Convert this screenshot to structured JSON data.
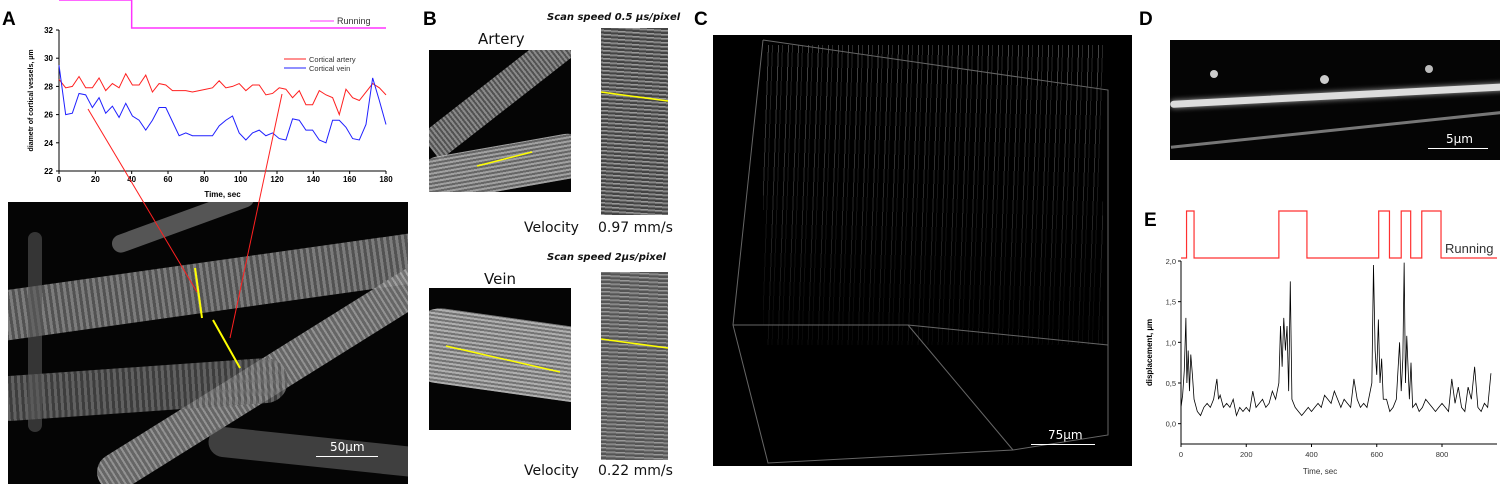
{
  "panels": {
    "A": {
      "label": "A",
      "scale_bar": "50µm"
    },
    "B": {
      "label": "B",
      "artery": {
        "title": "Artery",
        "scan_speed": "Scan speed 0.5 µs/pixel",
        "velocity_label": "Velocity",
        "velocity_value": "0.97 mm/s"
      },
      "vein": {
        "title": "Vein",
        "scan_speed": "Scan speed 2µs/pixel",
        "velocity_label": "Velocity",
        "velocity_value": "0.22 mm/s"
      }
    },
    "C": {
      "label": "C",
      "scale_bar": "75µm"
    },
    "D": {
      "label": "D",
      "scale_bar": "5µm"
    },
    "E": {
      "label": "E"
    }
  },
  "colors": {
    "artery": "#ff2020",
    "vein": "#2020ff",
    "running_A": "#ff33ff",
    "running_E": "#ff3030",
    "scan_line": "#ffff00"
  },
  "chart_data": [
    {
      "type": "line",
      "panel": "A",
      "xlabel": "Time, sec",
      "ylabel": "diametr of cortical vessels, µm",
      "xlim": [
        0,
        180
      ],
      "ylim": [
        22,
        32
      ],
      "xticks": [
        0,
        20,
        40,
        60,
        80,
        100,
        120,
        140,
        160,
        180
      ],
      "yticks": [
        22,
        24,
        26,
        28,
        30,
        32
      ],
      "legend": "top-right",
      "running": {
        "label": "Running",
        "high_interval": [
          0,
          40
        ]
      },
      "series": [
        {
          "name": "Cortical artery",
          "color": "#ff2020",
          "values": [
            28.5,
            27.9,
            28.0,
            28.7,
            27.9,
            27.9,
            28.6,
            27.7,
            28.2,
            27.9,
            28.9,
            28.1,
            28.1,
            28.8,
            27.6,
            28.2,
            28.1,
            27.7,
            27.7,
            27.7,
            27.6,
            27.7,
            27.8,
            27.9,
            28.4,
            27.9,
            28.0,
            28.2,
            27.7,
            28.1,
            28.1,
            27.4,
            27.5,
            27.9,
            27.8,
            27.2,
            27.7,
            26.7,
            26.7,
            27.7,
            27.4,
            27.2,
            26.0,
            27.8,
            27.2,
            27.0,
            27.6,
            28.2,
            27.9,
            27.4
          ]
        },
        {
          "name": "Cortical vein",
          "color": "#2020ff",
          "values": [
            29.5,
            26.0,
            26.1,
            27.5,
            27.4,
            26.5,
            27.2,
            26.1,
            26.6,
            25.8,
            26.8,
            25.9,
            25.6,
            24.9,
            25.6,
            26.5,
            26.5,
            25.5,
            24.5,
            24.7,
            24.5,
            24.5,
            24.5,
            24.5,
            25.2,
            25.6,
            25.9,
            24.7,
            24.2,
            24.7,
            24.9,
            24.5,
            24.7,
            24.3,
            24.2,
            25.7,
            25.6,
            24.9,
            24.9,
            24.2,
            24.0,
            25.6,
            25.6,
            25.1,
            24.3,
            24.2,
            25.3,
            28.6,
            27.0,
            25.3
          ]
        }
      ]
    },
    {
      "type": "line",
      "panel": "E",
      "xlabel": "Time, sec",
      "ylabel": "displacement, µm",
      "xlim": [
        0,
        950
      ],
      "ylim": [
        -0.25,
        2.0
      ],
      "xticks": [
        0,
        200,
        400,
        600,
        800
      ],
      "yticks": [
        "0,0",
        "0,5",
        "1,0",
        "1,5",
        "2,0"
      ],
      "ytick_values": [
        0,
        0.5,
        1.0,
        1.5,
        2.0
      ],
      "running": {
        "label": "Running",
        "intervals": [
          [
            17,
            40
          ],
          [
            300,
            386
          ],
          [
            606,
            639
          ],
          [
            675,
            704
          ],
          [
            738,
            797
          ]
        ]
      },
      "series": [
        {
          "name": "displacement",
          "x": [
            0,
            5,
            10,
            15,
            18,
            22,
            26,
            30,
            35,
            40,
            50,
            60,
            70,
            80,
            90,
            100,
            110,
            115,
            120,
            130,
            140,
            150,
            160,
            170,
            180,
            190,
            200,
            210,
            220,
            230,
            240,
            250,
            260,
            270,
            280,
            290,
            300,
            305,
            310,
            315,
            320,
            325,
            330,
            335,
            340,
            350,
            360,
            370,
            380,
            390,
            400,
            410,
            420,
            430,
            440,
            450,
            460,
            470,
            480,
            490,
            500,
            510,
            520,
            530,
            540,
            550,
            560,
            570,
            580,
            585,
            590,
            595,
            600,
            605,
            610,
            615,
            620,
            630,
            640,
            650,
            660,
            670,
            675,
            680,
            684,
            688,
            692,
            700,
            705,
            710,
            720,
            730,
            740,
            750,
            760,
            770,
            780,
            790,
            800,
            810,
            820,
            830,
            840,
            850,
            860,
            870,
            880,
            890,
            900,
            910,
            920,
            930,
            940,
            950
          ],
          "values": [
            0.2,
            0.35,
            0.65,
            1.3,
            0.5,
            0.9,
            0.4,
            0.85,
            0.6,
            0.3,
            0.15,
            0.1,
            0.2,
            0.25,
            0.2,
            0.3,
            0.55,
            0.3,
            0.35,
            0.2,
            0.25,
            0.2,
            0.3,
            0.1,
            0.2,
            0.15,
            0.2,
            0.15,
            0.4,
            0.2,
            0.25,
            0.3,
            0.2,
            0.25,
            0.4,
            0.3,
            0.5,
            1.2,
            0.7,
            1.3,
            0.9,
            1.2,
            0.4,
            1.75,
            0.3,
            0.2,
            0.15,
            0.1,
            0.15,
            0.2,
            0.15,
            0.2,
            0.25,
            0.2,
            0.35,
            0.3,
            0.25,
            0.4,
            0.3,
            0.2,
            0.3,
            0.25,
            0.2,
            0.55,
            0.3,
            0.2,
            0.25,
            0.2,
            0.4,
            0.5,
            1.95,
            0.9,
            0.6,
            1.28,
            0.5,
            0.8,
            0.3,
            0.3,
            0.15,
            0.2,
            0.3,
            1.0,
            0.4,
            0.8,
            1.98,
            0.5,
            1.08,
            0.3,
            0.75,
            0.2,
            0.25,
            0.15,
            0.2,
            0.3,
            0.25,
            0.2,
            0.15,
            0.2,
            0.25,
            0.2,
            0.15,
            0.55,
            0.25,
            0.45,
            0.2,
            0.15,
            0.45,
            0.3,
            0.7,
            0.2,
            0.15,
            0.25,
            0.2,
            0.62
          ]
        }
      ]
    }
  ]
}
